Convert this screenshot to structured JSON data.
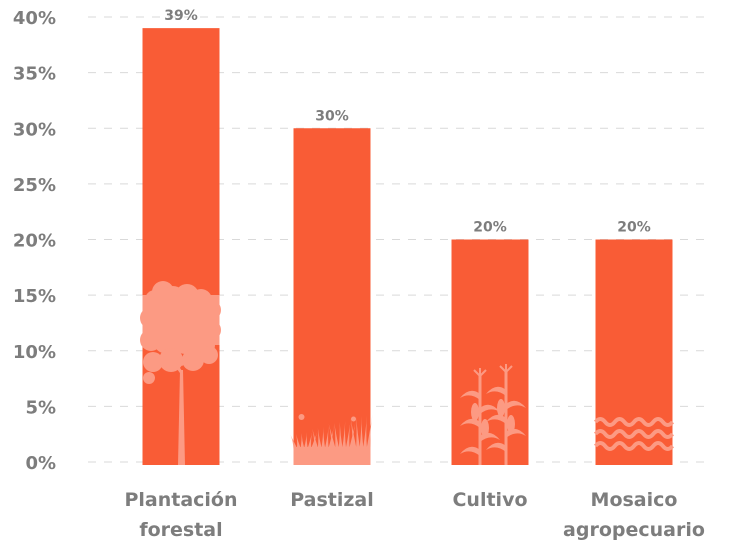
{
  "chart_data": {
    "type": "bar",
    "categories": [
      {
        "lines": [
          "Plantación",
          "forestal"
        ],
        "icon": "tree-icon"
      },
      {
        "lines": [
          "Pastizal"
        ],
        "icon": "grass-icon"
      },
      {
        "lines": [
          "Cultivo"
        ],
        "icon": "corn-icon"
      },
      {
        "lines": [
          "Mosaico",
          "agropecuario"
        ],
        "icon": "waves-icon"
      }
    ],
    "values": [
      39,
      30,
      20,
      20
    ],
    "value_labels": [
      "39%",
      "30%",
      "20%",
      "20%"
    ],
    "y_ticks": [
      "0%",
      "5%",
      "10%",
      "15%",
      "20%",
      "25%",
      "30%",
      "35%",
      "40%"
    ],
    "ylim": [
      0,
      40
    ],
    "grid": true,
    "colors": {
      "bar": "#f95c36",
      "icon": "#fc9a83",
      "text": "#7d7d7d",
      "grid": "#d9d9d9"
    }
  }
}
